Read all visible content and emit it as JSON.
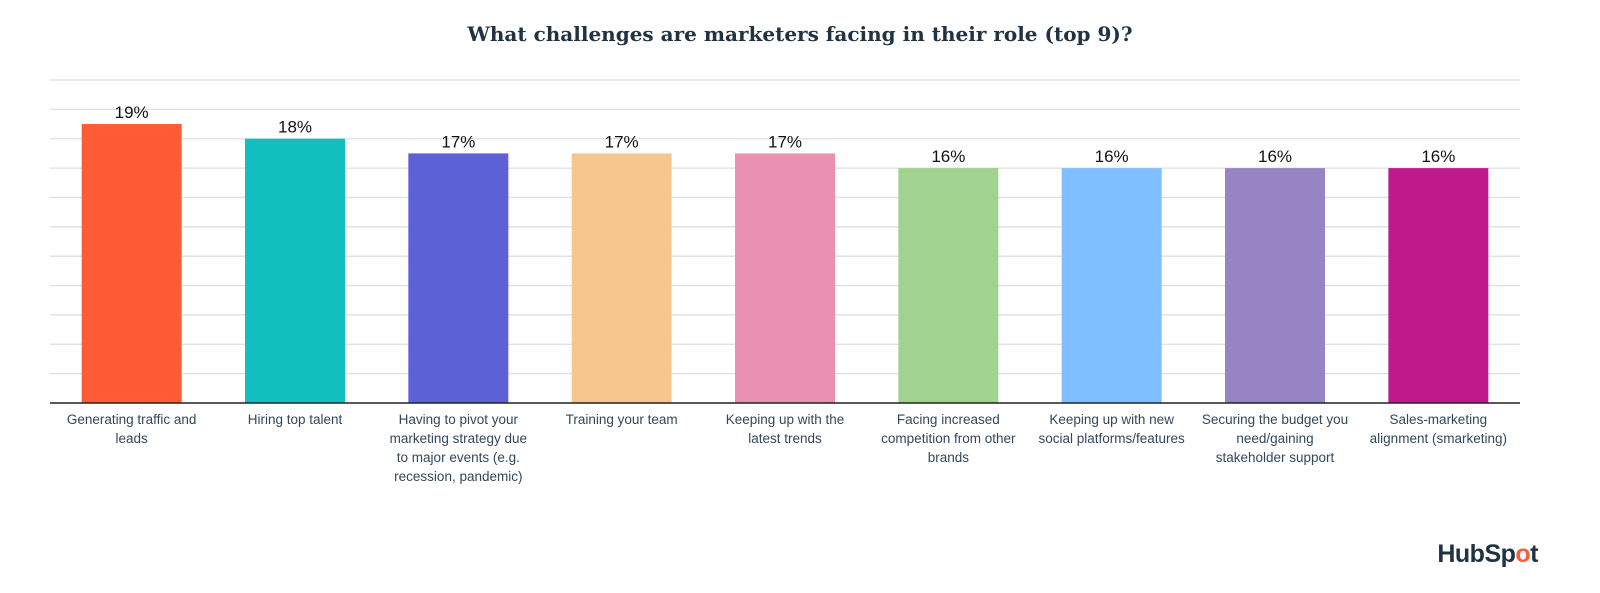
{
  "chart_data": {
    "type": "bar",
    "title": "What challenges are marketers facing in their role (top 9)?",
    "categories": [
      "Generating traffic and leads",
      "Hiring top talent",
      "Having to pivot your marketing strategy due to major events (e.g. recession, pandemic)",
      "Training your team",
      "Keeping up with the latest trends",
      "Facing increased competition from other brands",
      "Keeping up with new social platforms/features",
      "Securing the budget you need/gaining stakeholder support",
      "Sales-marketing alignment (smarketing)"
    ],
    "values": [
      19,
      18,
      17,
      17,
      17,
      16,
      16,
      16,
      16
    ],
    "data_labels": [
      "19%",
      "18%",
      "17%",
      "17%",
      "17%",
      "16%",
      "16%",
      "16%",
      "16%"
    ],
    "colors": [
      "#ff5c35",
      "#12bfbf",
      "#5c62d6",
      "#f5c78e",
      "#ea90b1",
      "#a2d28f",
      "#80bfff",
      "#9784c2",
      "#bf1a8c"
    ],
    "ylim": [
      0,
      22
    ],
    "gridline_step": 2,
    "grid": true,
    "xlabel": "",
    "ylabel": ""
  },
  "brand": "HubSpot"
}
